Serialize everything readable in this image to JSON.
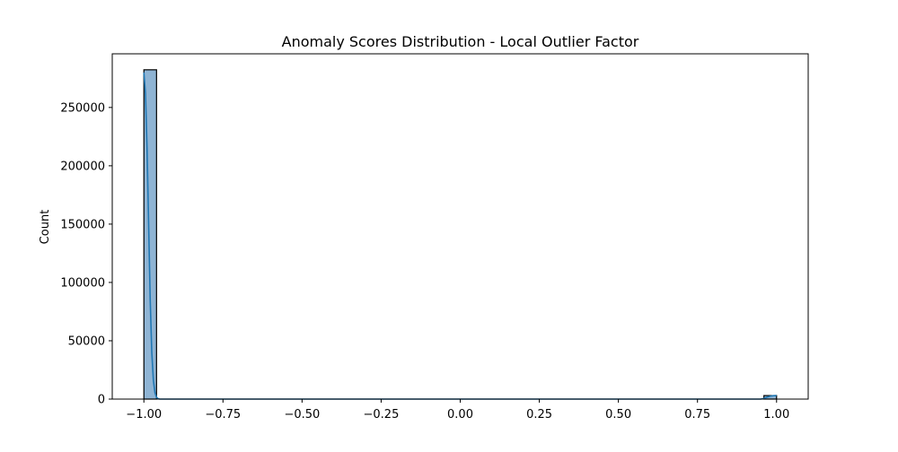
{
  "chart_data": {
    "type": "histogram",
    "title": "Anomaly Scores Distribution - Local Outlier Factor",
    "xlabel": "",
    "ylabel": "Count",
    "xlim": [
      -1.1,
      1.1
    ],
    "ylim": [
      0,
      296000
    ],
    "x_ticks": [
      -1.0,
      -0.75,
      -0.5,
      -0.25,
      0.0,
      0.25,
      0.5,
      0.75,
      1.0
    ],
    "x_tick_labels": [
      "−1.00",
      "−0.75",
      "−0.50",
      "−0.25",
      "0.00",
      "0.25",
      "0.50",
      "0.75",
      "1.00"
    ],
    "y_ticks": [
      0,
      50000,
      100000,
      150000,
      200000,
      250000
    ],
    "y_tick_labels": [
      "0",
      "50000",
      "100000",
      "150000",
      "200000",
      "250000"
    ],
    "bins": [
      {
        "x0": -1.0,
        "x1": -0.96,
        "count": 282300
      },
      {
        "x0": 0.96,
        "x1": 1.0,
        "count": 3000
      }
    ],
    "kde": {
      "x": [
        -1.0,
        -0.995,
        -0.99,
        -0.985,
        -0.98,
        -0.975,
        -0.97,
        -0.965,
        -0.96,
        -0.955,
        -0.95,
        -0.9,
        0.9,
        0.95,
        0.96,
        0.97,
        0.98,
        0.99,
        1.0
      ],
      "y": [
        280000,
        262000,
        215000,
        150000,
        85000,
        40000,
        16000,
        5500,
        1500,
        400,
        0,
        0,
        0,
        0,
        600,
        1600,
        2500,
        2900,
        3000
      ]
    },
    "colors": {
      "bar_fill": "#8fb4d4",
      "bar_edge": "#000000",
      "kde_line": "#1f77b4"
    },
    "grid": false,
    "legend": "none"
  }
}
